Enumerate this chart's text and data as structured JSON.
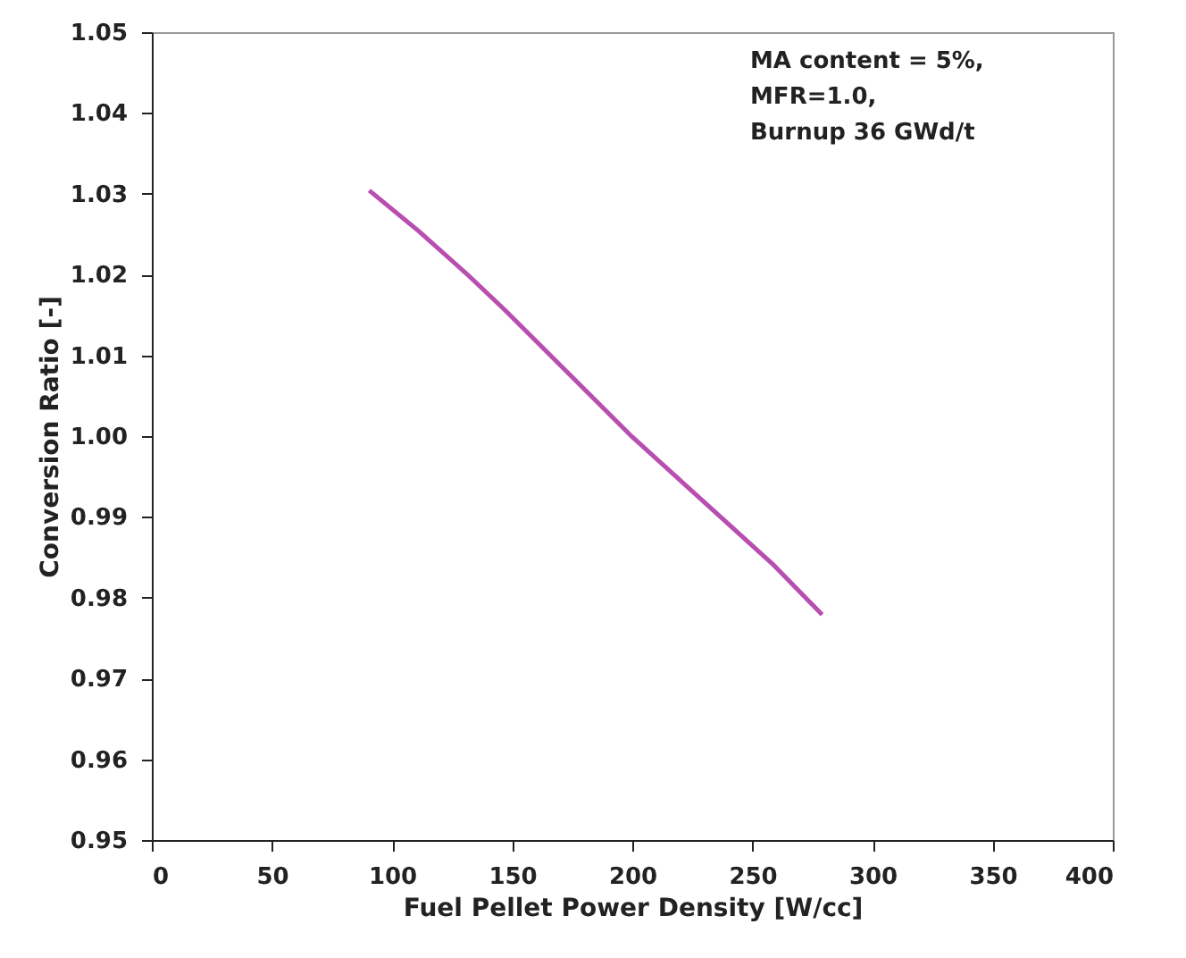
{
  "chart_data": {
    "type": "line",
    "xlabel": "Fuel Pellet Power Density [W/cc]",
    "ylabel": "Conversion Ratio [-]",
    "x": [
      90.5,
      111,
      131,
      147,
      200,
      259,
      279
    ],
    "series": [
      {
        "color": "#b84fb0",
        "values": [
          1.0304,
          1.0254,
          1.0201,
          1.0156,
          0.9999,
          0.984,
          0.9779
        ]
      }
    ],
    "xlim": [
      0,
      400
    ],
    "xticks": [
      0,
      50,
      100,
      150,
      200,
      250,
      300,
      350,
      400
    ],
    "ylim": [
      0.95,
      1.05
    ],
    "yticks": [
      {
        "value": 0.95,
        "label": "0.95"
      },
      {
        "value": 0.96,
        "label": "0.96"
      },
      {
        "value": 0.97,
        "label": "0.97"
      },
      {
        "value": 0.98,
        "label": "0.98"
      },
      {
        "value": 0.99,
        "label": "0.99"
      },
      {
        "value": 1.0,
        "label": "1.00"
      },
      {
        "value": 1.01,
        "label": "1.01"
      },
      {
        "value": 1.02,
        "label": "1.02"
      },
      {
        "value": 1.03,
        "label": "1.03"
      },
      {
        "value": 1.04,
        "label": "1.04"
      },
      {
        "value": 1.05,
        "label": "1.05"
      }
    ],
    "annotations": [
      "MA content = 5%,\nMFR=1.0,\nBurnup 36 GWd/t"
    ],
    "grid": false,
    "marker": "none",
    "line_style": "solid"
  }
}
